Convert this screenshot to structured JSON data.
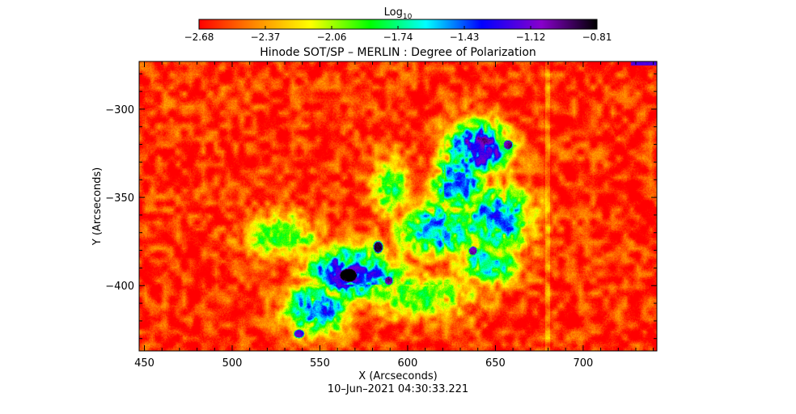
{
  "chart_data": {
    "type": "heatmap",
    "title": "Hinode SOT/SP – MERLIN : Degree of Polarization",
    "xlabel": "X (Arcseconds)",
    "ylabel": "Y (Arcseconds)",
    "timestamp": "10–Jun–2021 04:30:33.221",
    "xlim": [
      447,
      742
    ],
    "ylim": [
      -437,
      -273
    ],
    "x_ticks": [
      450,
      500,
      550,
      600,
      650,
      700
    ],
    "y_ticks": [
      -300,
      -350,
      -400
    ],
    "colorbar": {
      "label_base": "Log",
      "label_sub": "10",
      "range": [
        -2.68,
        -0.81
      ],
      "ticks": [
        "-2.68",
        "-2.37",
        "-2.06",
        "-1.74",
        "-1.43",
        "-1.12",
        "-0.81"
      ],
      "colormap": [
        "#ff0000",
        "#ff8800",
        "#ffff00",
        "#00ff00",
        "#00ffff",
        "#0000ff",
        "#8800cc",
        "#000000"
      ]
    },
    "background_level": -2.6,
    "features": [
      {
        "kind": "plage",
        "x": 640,
        "y": -322,
        "sx": 12,
        "sy": 10,
        "level": -1.15
      },
      {
        "kind": "plage",
        "x": 628,
        "y": -342,
        "sx": 10,
        "sy": 10,
        "level": -1.4
      },
      {
        "kind": "plage",
        "x": 618,
        "y": -368,
        "sx": 16,
        "sy": 10,
        "level": -1.5
      },
      {
        "kind": "plage",
        "x": 650,
        "y": -362,
        "sx": 14,
        "sy": 12,
        "level": -1.45
      },
      {
        "kind": "plage",
        "x": 645,
        "y": -388,
        "sx": 12,
        "sy": 7,
        "level": -1.6
      },
      {
        "kind": "plage",
        "x": 590,
        "y": -344,
        "sx": 7,
        "sy": 12,
        "level": -1.85
      },
      {
        "kind": "plage",
        "x": 568,
        "y": -393,
        "sx": 18,
        "sy": 10,
        "level": -1.3
      },
      {
        "kind": "plage",
        "x": 548,
        "y": -413,
        "sx": 12,
        "sy": 10,
        "level": -1.45
      },
      {
        "kind": "plage",
        "x": 528,
        "y": -372,
        "sx": 14,
        "sy": 9,
        "level": -1.9
      },
      {
        "kind": "plage",
        "x": 605,
        "y": -405,
        "sx": 24,
        "sy": 9,
        "level": -1.95
      },
      {
        "kind": "pore",
        "x": 566,
        "y": -394,
        "sx": 4.5,
        "sy": 3.5,
        "level": -0.81
      },
      {
        "kind": "pore",
        "x": 583,
        "y": -378,
        "sx": 2.2,
        "sy": 2.8,
        "level": -1.0
      },
      {
        "kind": "pore",
        "x": 657,
        "y": -320,
        "sx": 2.2,
        "sy": 2.2,
        "level": -1.05
      },
      {
        "kind": "pore",
        "x": 637,
        "y": -380,
        "sx": 2,
        "sy": 2,
        "level": -1.1
      },
      {
        "kind": "pore",
        "x": 589,
        "y": -397,
        "sx": 2,
        "sy": 2,
        "level": -1.15
      },
      {
        "kind": "pore",
        "x": 538,
        "y": -427,
        "sx": 2.5,
        "sy": 2,
        "level": -1.2
      }
    ]
  }
}
